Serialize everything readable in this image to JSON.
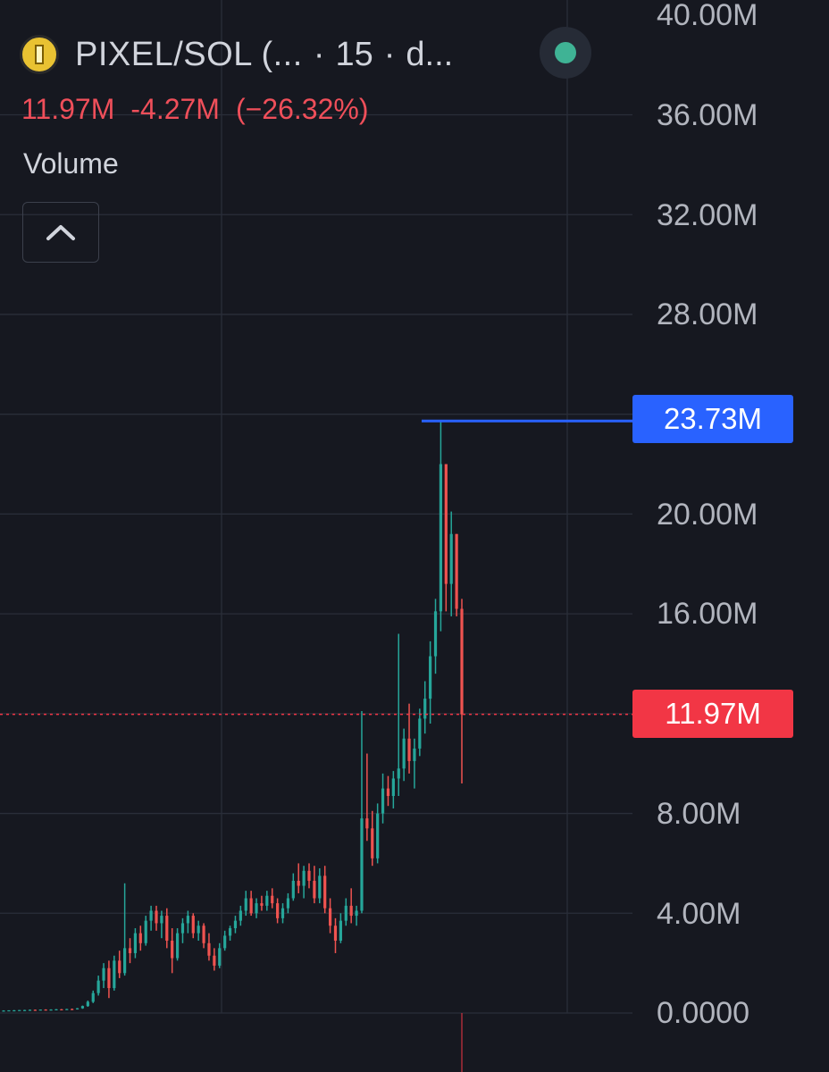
{
  "header": {
    "symbol": "PIXEL/SOL (...",
    "separator_1": "·",
    "interval": "15",
    "separator_2": "·",
    "source": "d...",
    "coin_icon": "pixel-coin-icon",
    "status_icon": "market-open-dot-icon"
  },
  "stats": {
    "last": "11.97M",
    "change": "-4.27M",
    "change_pct": "(−26.32%)"
  },
  "volume_label": "Volume",
  "collapse_icon": "chevron-up-icon",
  "price_scale": {
    "ticks": [
      "40.00M",
      "36.00M",
      "32.00M",
      "28.00M",
      "20.00M",
      "16.00M",
      "8.00M",
      "4.00M",
      "0.0000"
    ],
    "high_tag": "23.73M",
    "last_tag": "11.97M"
  },
  "colors": {
    "background": "#161820",
    "up": "#26a69a",
    "down": "#ef5350",
    "high_line": "#2962ff",
    "last_line": "#f23645",
    "grid": "#2a2e39",
    "text": "#d1d4dc"
  },
  "chart_data": {
    "type": "candlestick",
    "symbol": "PIXEL/SOL",
    "interval": "15",
    "y_range": [
      0,
      40000000
    ],
    "y_ticks": [
      0,
      4000000,
      8000000,
      16000000,
      20000000,
      28000000,
      32000000,
      36000000,
      40000000
    ],
    "high_line": 23730000,
    "last_price": 11970000,
    "grid": true,
    "candles_ohlc_millions": [
      [
        0.1,
        0.11,
        0.08,
        0.1
      ],
      [
        0.1,
        0.11,
        0.09,
        0.11
      ],
      [
        0.11,
        0.12,
        0.1,
        0.11
      ],
      [
        0.11,
        0.12,
        0.1,
        0.12
      ],
      [
        0.12,
        0.13,
        0.1,
        0.12
      ],
      [
        0.12,
        0.14,
        0.11,
        0.13
      ],
      [
        0.13,
        0.14,
        0.11,
        0.12
      ],
      [
        0.12,
        0.14,
        0.11,
        0.14
      ],
      [
        0.14,
        0.15,
        0.12,
        0.13
      ],
      [
        0.13,
        0.15,
        0.12,
        0.14
      ],
      [
        0.14,
        0.16,
        0.13,
        0.15
      ],
      [
        0.15,
        0.16,
        0.13,
        0.14
      ],
      [
        0.14,
        0.17,
        0.13,
        0.16
      ],
      [
        0.16,
        0.18,
        0.14,
        0.15
      ],
      [
        0.15,
        0.2,
        0.14,
        0.19
      ],
      [
        0.19,
        0.3,
        0.17,
        0.28
      ],
      [
        0.28,
        0.5,
        0.25,
        0.45
      ],
      [
        0.45,
        0.9,
        0.4,
        0.8
      ],
      [
        0.8,
        1.5,
        0.7,
        1.3
      ],
      [
        1.3,
        2.0,
        1.0,
        1.8
      ],
      [
        1.8,
        2.1,
        0.6,
        1.0
      ],
      [
        1.0,
        2.3,
        0.9,
        2.1
      ],
      [
        2.1,
        2.5,
        1.4,
        1.6
      ],
      [
        1.6,
        5.2,
        1.5,
        2.6
      ],
      [
        2.6,
        3.0,
        2.0,
        2.4
      ],
      [
        2.4,
        3.4,
        2.2,
        3.2
      ],
      [
        3.2,
        3.5,
        2.5,
        2.8
      ],
      [
        2.8,
        3.9,
        2.7,
        3.7
      ],
      [
        3.7,
        4.3,
        3.3,
        4.1
      ],
      [
        4.1,
        4.3,
        3.3,
        3.6
      ],
      [
        3.6,
        4.1,
        3.0,
        3.9
      ],
      [
        3.9,
        4.2,
        2.6,
        2.9
      ],
      [
        2.9,
        3.4,
        1.6,
        2.2
      ],
      [
        2.2,
        3.4,
        2.1,
        3.2
      ],
      [
        3.2,
        3.8,
        2.8,
        3.6
      ],
      [
        3.6,
        4.1,
        3.2,
        3.9
      ],
      [
        3.9,
        4.0,
        3.0,
        3.2
      ],
      [
        3.2,
        3.7,
        2.9,
        3.5
      ],
      [
        3.5,
        3.6,
        2.6,
        2.8
      ],
      [
        2.8,
        3.2,
        2.1,
        2.3
      ],
      [
        2.3,
        2.6,
        1.7,
        1.9
      ],
      [
        1.9,
        2.8,
        1.8,
        2.6
      ],
      [
        2.6,
        3.3,
        2.5,
        3.1
      ],
      [
        3.1,
        3.5,
        2.9,
        3.4
      ],
      [
        3.4,
        3.9,
        3.2,
        3.7
      ],
      [
        3.7,
        4.3,
        3.5,
        4.1
      ],
      [
        4.1,
        4.9,
        3.9,
        4.6
      ],
      [
        4.6,
        4.9,
        3.9,
        4.0
      ],
      [
        4.0,
        4.6,
        3.8,
        4.4
      ],
      [
        4.4,
        4.7,
        4.1,
        4.3
      ],
      [
        4.3,
        4.9,
        4.1,
        4.7
      ],
      [
        4.7,
        5.0,
        4.2,
        4.4
      ],
      [
        4.4,
        4.6,
        3.6,
        3.8
      ],
      [
        3.8,
        4.4,
        3.6,
        4.2
      ],
      [
        4.2,
        4.8,
        4.0,
        4.6
      ],
      [
        4.6,
        5.6,
        4.5,
        5.3
      ],
      [
        5.3,
        6.0,
        4.8,
        5.1
      ],
      [
        5.1,
        5.9,
        4.6,
        5.7
      ],
      [
        5.7,
        6.0,
        5.0,
        5.3
      ],
      [
        5.3,
        5.9,
        4.4,
        4.6
      ],
      [
        4.6,
        5.8,
        4.4,
        5.5
      ],
      [
        5.5,
        5.9,
        4.0,
        4.2
      ],
      [
        4.2,
        4.6,
        3.2,
        3.5
      ],
      [
        3.5,
        3.8,
        2.4,
        2.9
      ],
      [
        2.9,
        4.0,
        2.8,
        3.7
      ],
      [
        3.7,
        4.6,
        3.5,
        4.3
      ],
      [
        4.3,
        5.0,
        3.6,
        3.9
      ],
      [
        3.9,
        4.3,
        3.5,
        4.1
      ],
      [
        4.1,
        12.1,
        4.0,
        7.8
      ],
      [
        7.8,
        10.4,
        6.9,
        7.4
      ],
      [
        7.4,
        8.1,
        5.9,
        6.2
      ],
      [
        6.2,
        8.4,
        6.0,
        8.0
      ],
      [
        8.0,
        9.6,
        7.6,
        9.0
      ],
      [
        9.0,
        9.5,
        8.3,
        8.7
      ],
      [
        8.7,
        9.7,
        8.2,
        9.4
      ],
      [
        9.4,
        15.2,
        8.7,
        9.8
      ],
      [
        9.8,
        11.4,
        9.3,
        11.0
      ],
      [
        11.0,
        12.4,
        9.6,
        10.1
      ],
      [
        10.1,
        11.0,
        9.0,
        10.6
      ],
      [
        10.6,
        12.2,
        10.3,
        11.8
      ],
      [
        11.8,
        13.3,
        11.2,
        12.6
      ],
      [
        12.6,
        14.9,
        11.6,
        14.3
      ],
      [
        14.3,
        16.6,
        13.6,
        16.1
      ],
      [
        16.1,
        23.73,
        15.3,
        22.0
      ],
      [
        22.0,
        21.4,
        16.1,
        17.2
      ],
      [
        17.2,
        20.1,
        15.9,
        19.2
      ],
      [
        19.2,
        18.6,
        15.9,
        16.2
      ],
      [
        16.2,
        16.6,
        9.2,
        11.97
      ]
    ]
  }
}
